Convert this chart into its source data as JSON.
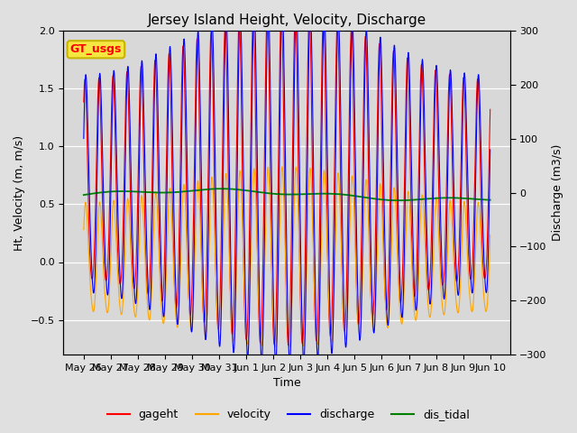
{
  "title": "Jersey Island Height, Velocity, Discharge",
  "xlabel": "Time",
  "ylabel_left": "Ht, Velocity (m, m/s)",
  "ylabel_right": "Discharge (m3/s)",
  "ylim_left": [
    -0.8,
    2.0
  ],
  "ylim_right": [
    -300,
    300
  ],
  "fig_bg_color": "#e0e0e0",
  "plot_bg_color": "#d8d8d8",
  "legend_entries": [
    "gageht",
    "velocity",
    "discharge",
    "dis_tidal"
  ],
  "legend_colors": [
    "red",
    "orange",
    "blue",
    "green"
  ],
  "annotation_text": "GT_usgs",
  "annotation_color": "red",
  "annotation_bg": "#f5e642",
  "annotation_edge": "#c8b400",
  "grid_color": "white",
  "title_fontsize": 11,
  "label_fontsize": 9,
  "tick_fontsize": 8
}
